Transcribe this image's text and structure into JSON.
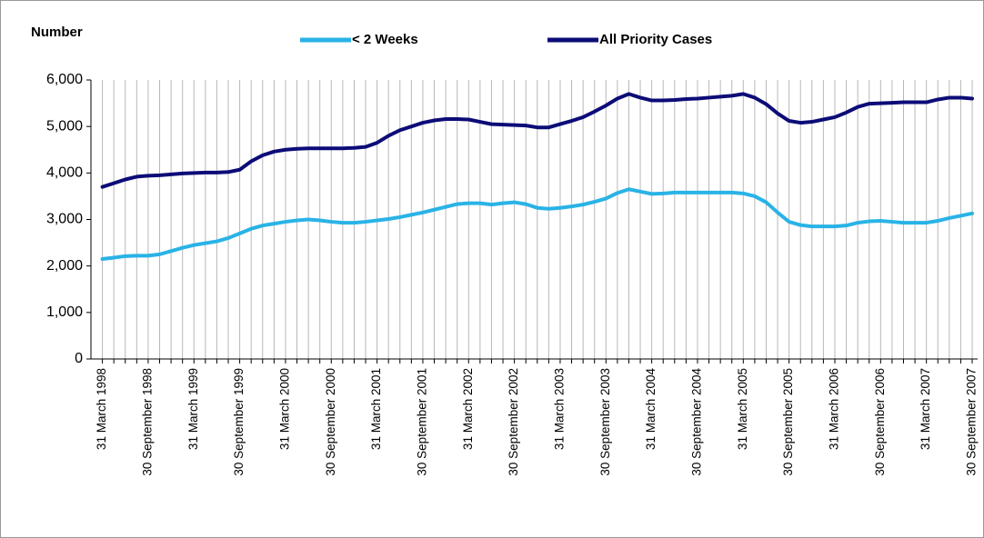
{
  "chart_data": {
    "type": "line",
    "title": "Number",
    "categories": [
      "31 March 1998",
      null,
      null,
      null,
      "30 September 1998",
      null,
      null,
      null,
      "31 March 1999",
      null,
      null,
      null,
      "30 September 1999",
      null,
      null,
      null,
      "31 March 2000",
      null,
      null,
      null,
      "30 September 2000",
      null,
      null,
      null,
      "31 March 2001",
      null,
      null,
      null,
      "30 September 2001",
      null,
      null,
      null,
      "31 March 2002",
      null,
      null,
      null,
      "30 September 2002",
      null,
      null,
      null,
      "31 March 2003",
      null,
      null,
      null,
      "30 September 2003",
      null,
      null,
      null,
      "31 March 2004",
      null,
      null,
      null,
      "30 September 2004",
      null,
      null,
      null,
      "31 March 2005",
      null,
      null,
      null,
      "30 September 2005",
      null,
      null,
      null,
      "31 March 2006",
      null,
      null,
      null,
      "30 September 2006",
      null,
      null,
      null,
      "31 March 2007",
      null,
      null,
      null,
      "30 September 2007"
    ],
    "series": [
      {
        "name": "< 2 Weeks",
        "color": "#29b3e6",
        "values": [
          2150,
          2180,
          2210,
          2220,
          2220,
          2250,
          2320,
          2390,
          2450,
          2490,
          2530,
          2600,
          2700,
          2800,
          2870,
          2910,
          2950,
          2980,
          3000,
          2980,
          2950,
          2930,
          2930,
          2950,
          2980,
          3010,
          3050,
          3100,
          3150,
          3210,
          3270,
          3330,
          3350,
          3350,
          3320,
          3350,
          3370,
          3330,
          3250,
          3230,
          3250,
          3280,
          3320,
          3380,
          3450,
          3570,
          3650,
          3600,
          3550,
          3560,
          3580,
          3580,
          3580,
          3580,
          3580,
          3580,
          3560,
          3500,
          3370,
          3150,
          2950,
          2880,
          2850,
          2850,
          2850,
          2870,
          2930,
          2960,
          2970,
          2950,
          2930,
          2930,
          2930,
          2970,
          3030,
          3080,
          3130
        ]
      },
      {
        "name": "All Priority Cases",
        "color": "#0c0c78",
        "values": [
          3700,
          3780,
          3860,
          3920,
          3940,
          3950,
          3970,
          3990,
          4000,
          4010,
          4010,
          4020,
          4070,
          4250,
          4380,
          4460,
          4500,
          4520,
          4530,
          4530,
          4530,
          4530,
          4540,
          4560,
          4650,
          4800,
          4920,
          5000,
          5080,
          5130,
          5160,
          5160,
          5150,
          5100,
          5050,
          5040,
          5030,
          5020,
          4980,
          4980,
          5050,
          5120,
          5200,
          5320,
          5450,
          5600,
          5700,
          5620,
          5560,
          5560,
          5570,
          5590,
          5600,
          5620,
          5640,
          5660,
          5700,
          5620,
          5480,
          5280,
          5120,
          5080,
          5100,
          5150,
          5200,
          5300,
          5420,
          5490,
          5500,
          5510,
          5520,
          5520,
          5520,
          5580,
          5620,
          5620,
          5600
        ]
      }
    ],
    "ylim": [
      0,
      6000
    ],
    "yticks": [
      0,
      {
        "value": 1000,
        "label": "1,000"
      },
      {
        "value": 2000,
        "label": "2,000"
      },
      {
        "value": 3000,
        "label": "3,000"
      },
      {
        "value": 4000,
        "label": "4,000"
      },
      {
        "value": 5000,
        "label": "5,000"
      },
      {
        "value": 6000,
        "label": "6,000"
      }
    ],
    "xgrid": true,
    "legend": "top"
  }
}
